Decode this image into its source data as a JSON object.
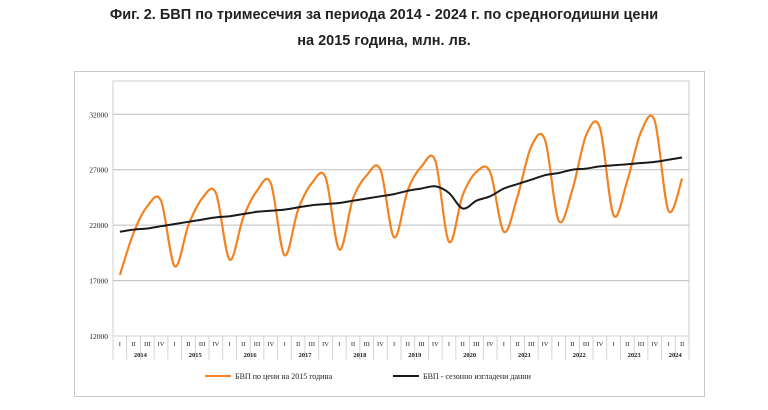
{
  "title_line1": "Фиг. 2. БВП по тримесечия за периода 2014 - 2024 г. по средногодишни цени",
  "title_line2": "на 2015 година, млн. лв.",
  "chart_data": {
    "type": "line",
    "y_ticks": [
      "12000",
      "17000",
      "22000",
      "27000",
      "32000"
    ],
    "ylim": [
      12000,
      35000
    ],
    "grid": "horizontal",
    "legend_position": "bottom",
    "categories": [
      "I",
      "II",
      "III",
      "IV",
      "I",
      "II",
      "III",
      "IV",
      "I",
      "II",
      "III",
      "IV",
      "I",
      "II",
      "III",
      "IV",
      "I",
      "II",
      "III",
      "IV",
      "I",
      "II",
      "III",
      "IV",
      "I",
      "II",
      "III",
      "IV",
      "I",
      "II",
      "III",
      "IV",
      "I",
      "II",
      "III",
      "IV",
      "I",
      "II",
      "III",
      "IV",
      "I",
      "II"
    ],
    "years": [
      {
        "label": "2014",
        "quarters": 4
      },
      {
        "label": "2015",
        "quarters": 4
      },
      {
        "label": "2016",
        "quarters": 4
      },
      {
        "label": "2017",
        "quarters": 4
      },
      {
        "label": "2018",
        "quarters": 4
      },
      {
        "label": "2019",
        "quarters": 4
      },
      {
        "label": "2020",
        "quarters": 4
      },
      {
        "label": "2021",
        "quarters": 4
      },
      {
        "label": "2022",
        "quarters": 4
      },
      {
        "label": "2023",
        "quarters": 4
      },
      {
        "label": "2024",
        "quarters": 2
      }
    ],
    "series": [
      {
        "name": "БВП  по цени на 2015 година",
        "color": "#f28322",
        "values": [
          17500,
          21300,
          23700,
          24200,
          18300,
          22000,
          24400,
          24900,
          18900,
          22700,
          25100,
          25800,
          19300,
          23400,
          25800,
          26300,
          19800,
          24400,
          26500,
          27000,
          20900,
          25200,
          27300,
          27800,
          20500,
          24700,
          26800,
          26800,
          21400,
          24600,
          29100,
          29700,
          22400,
          25200,
          30100,
          30800,
          22900,
          26000,
          30400,
          31400,
          23300,
          26200
        ]
      },
      {
        "name": "БВП - сезонно изгладени данни",
        "color": "#1a1a1a",
        "values": [
          21400,
          21600,
          21700,
          21900,
          22100,
          22300,
          22500,
          22700,
          22800,
          23000,
          23200,
          23300,
          23400,
          23600,
          23800,
          23900,
          24000,
          24200,
          24400,
          24600,
          24800,
          25100,
          25300,
          25500,
          24900,
          23500,
          24200,
          24600,
          25300,
          25700,
          26100,
          26500,
          26700,
          27000,
          27100,
          27300,
          27400,
          27500,
          27600,
          27700,
          27900,
          28100
        ]
      }
    ]
  }
}
